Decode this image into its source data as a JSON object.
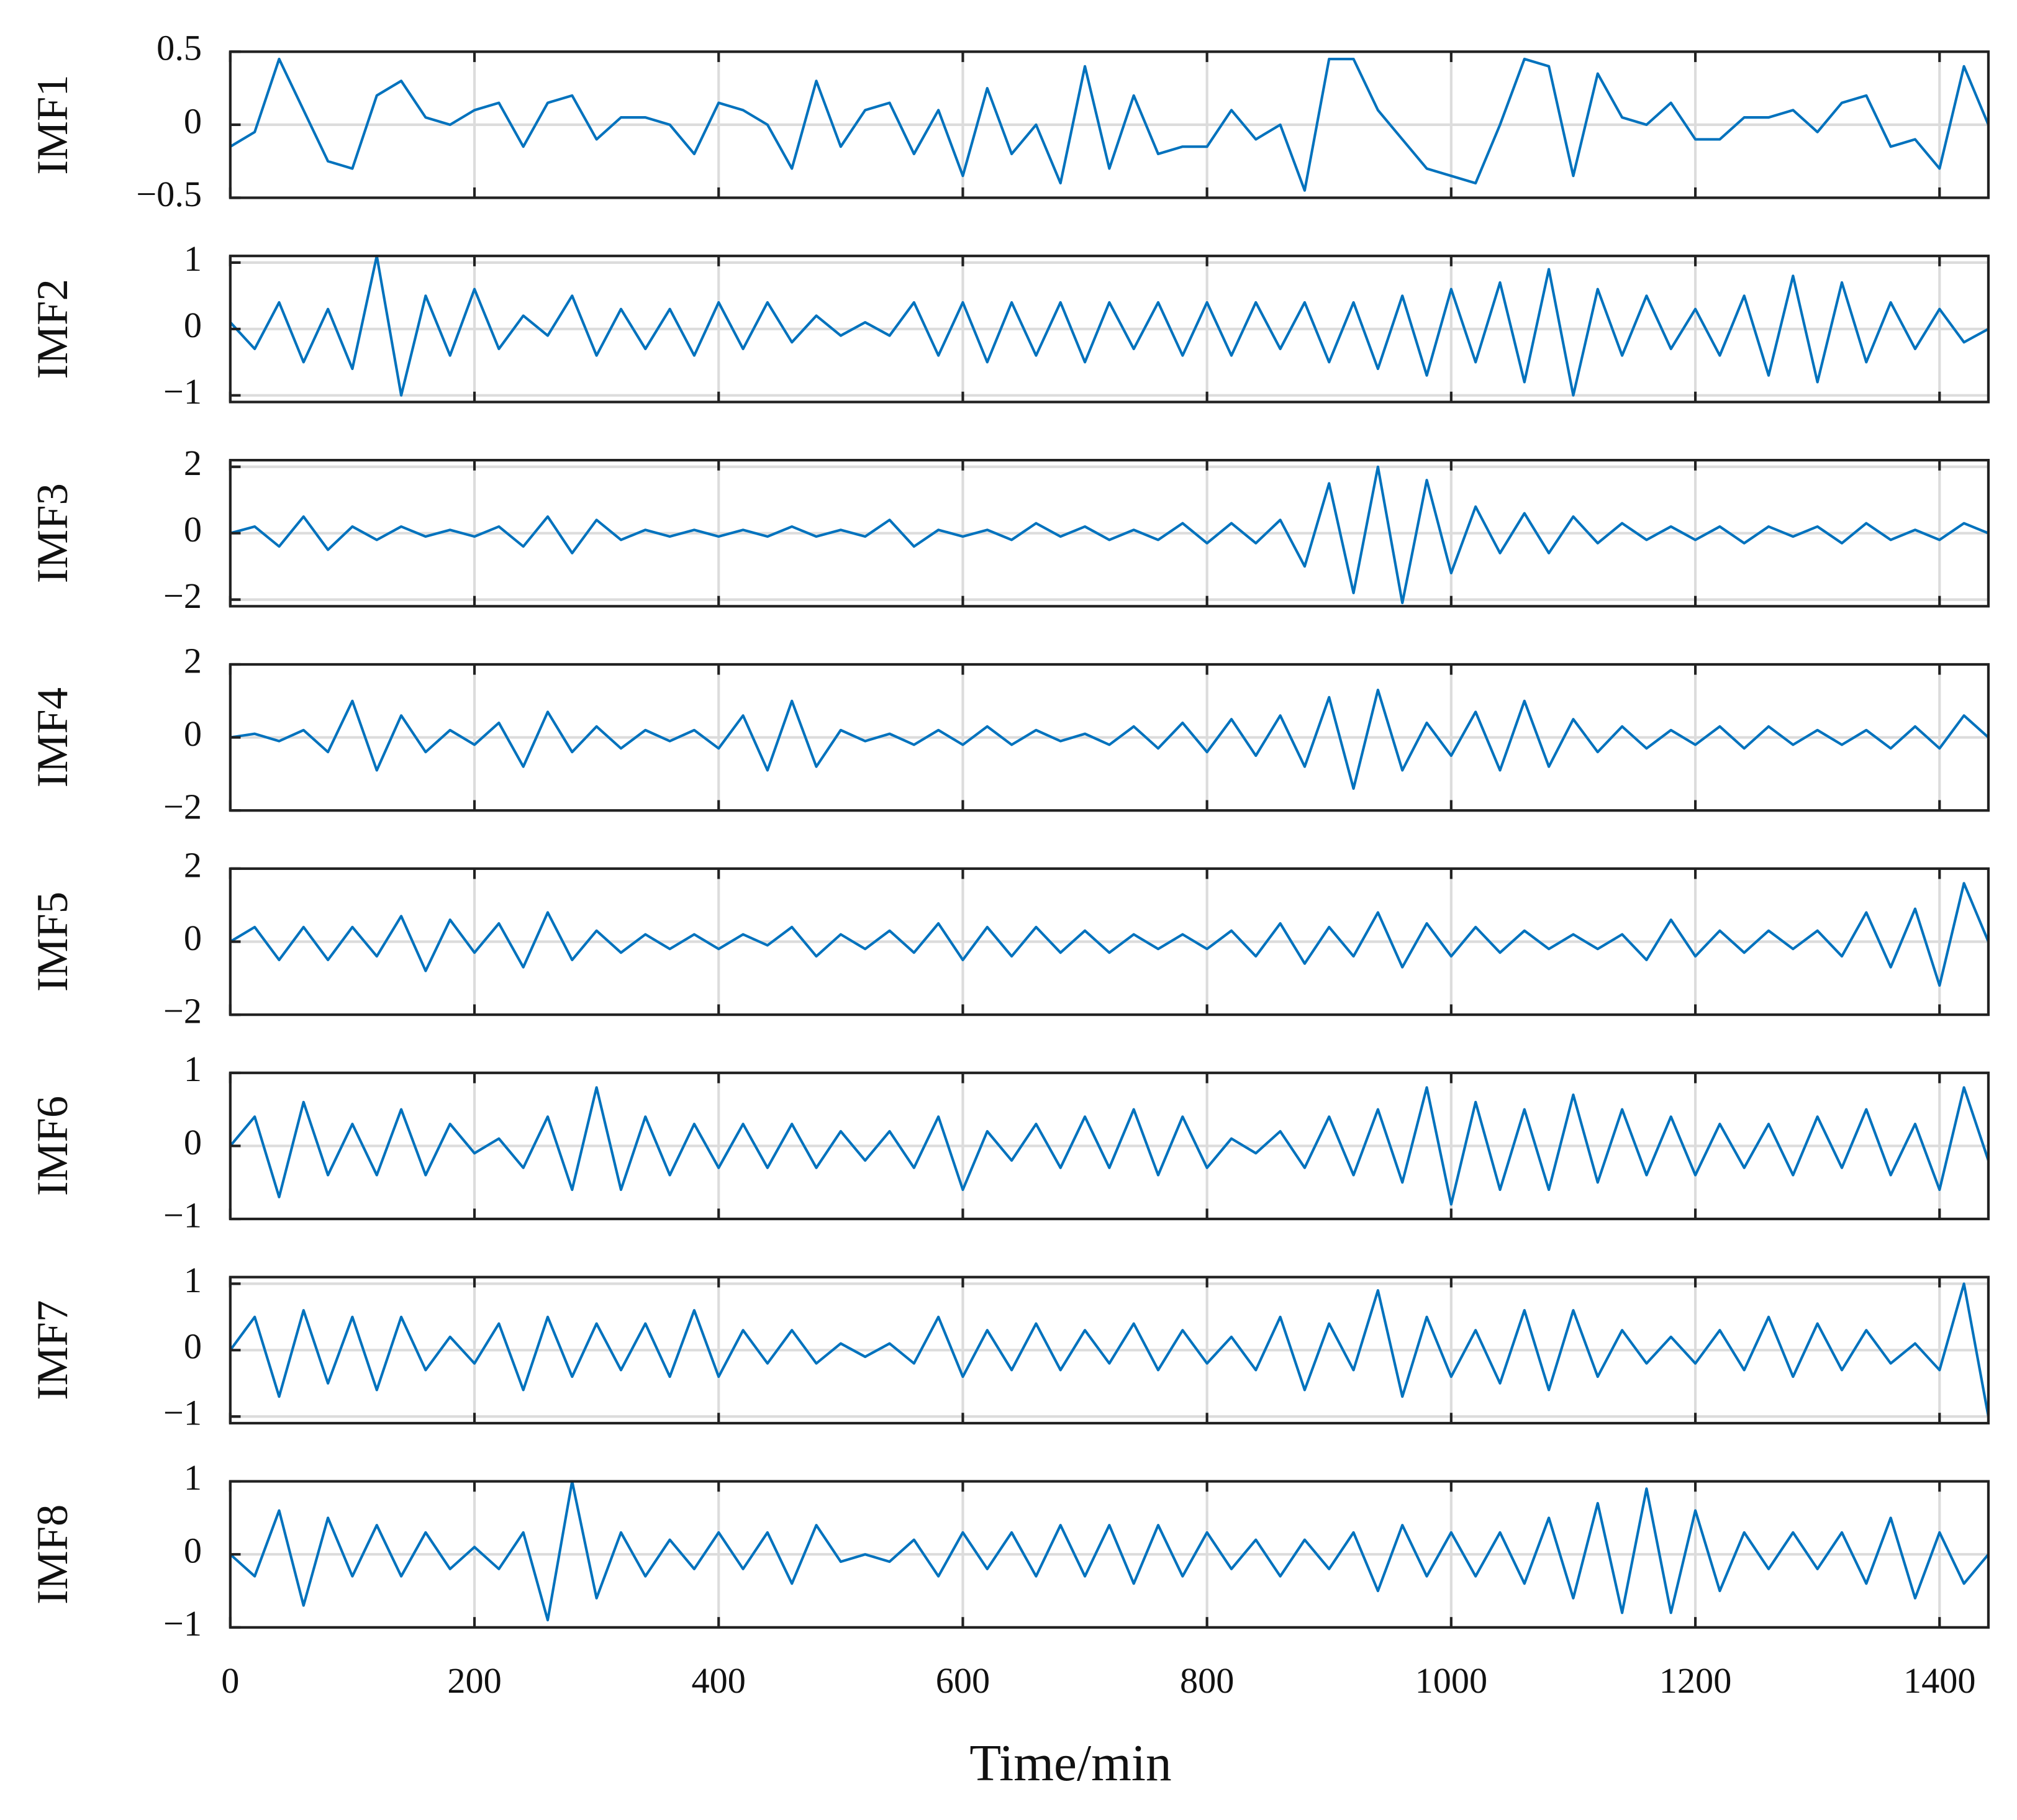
{
  "chart_data": [
    {
      "type": "line",
      "ylabel": "IMF1",
      "color": "#0072bd",
      "grid": true,
      "x": [
        0,
        20,
        40,
        60,
        80,
        100,
        120,
        140,
        160,
        180,
        200,
        220,
        240,
        260,
        280,
        300,
        320,
        340,
        360,
        380,
        400,
        420,
        440,
        460,
        480,
        500,
        520,
        540,
        560,
        580,
        600,
        620,
        640,
        660,
        680,
        700,
        720,
        740,
        760,
        780,
        800,
        820,
        840,
        860,
        880,
        900,
        920,
        940,
        960,
        980,
        1000,
        1020,
        1040,
        1060,
        1080,
        1100,
        1120,
        1140,
        1160,
        1180,
        1200,
        1220,
        1240,
        1260,
        1280,
        1300,
        1320,
        1340,
        1360,
        1380,
        1400,
        1420,
        1440
      ],
      "values": [
        -0.15,
        -0.05,
        0.45,
        0.1,
        -0.25,
        -0.3,
        0.2,
        0.3,
        0.05,
        0.0,
        0.1,
        0.15,
        -0.15,
        0.15,
        0.2,
        -0.1,
        0.05,
        0.05,
        0.0,
        -0.2,
        0.15,
        0.1,
        0.0,
        -0.3,
        0.3,
        -0.15,
        0.1,
        0.15,
        -0.2,
        0.1,
        -0.35,
        0.25,
        -0.2,
        0.0,
        -0.4,
        0.4,
        -0.3,
        0.2,
        -0.2,
        -0.15,
        -0.15,
        0.1,
        -0.1,
        0.0,
        -0.45,
        0.45,
        0.45,
        0.1,
        -0.1,
        -0.3,
        -0.35,
        -0.4,
        0.0,
        0.45,
        0.4,
        -0.35,
        0.35,
        0.05,
        0.0,
        0.15,
        -0.1,
        -0.1,
        0.05,
        0.05,
        0.1,
        -0.05,
        0.15,
        0.2,
        -0.15,
        -0.1,
        -0.3,
        0.4,
        0.0
      ],
      "xlim": [
        0,
        1440
      ],
      "xticks": [
        0,
        200,
        400,
        600,
        800,
        1000,
        1200,
        1400
      ],
      "ylim": [
        -0.5,
        0.5
      ],
      "yticks": [
        {
          "value": -0.5,
          "label": "−0.5"
        },
        0,
        0.5
      ]
    },
    {
      "type": "line",
      "ylabel": "IMF2",
      "color": "#0072bd",
      "grid": true,
      "x": [
        0,
        20,
        40,
        60,
        80,
        100,
        120,
        140,
        160,
        180,
        200,
        220,
        240,
        260,
        280,
        300,
        320,
        340,
        360,
        380,
        400,
        420,
        440,
        460,
        480,
        500,
        520,
        540,
        560,
        580,
        600,
        620,
        640,
        660,
        680,
        700,
        720,
        740,
        760,
        780,
        800,
        820,
        840,
        860,
        880,
        900,
        920,
        940,
        960,
        980,
        1000,
        1020,
        1040,
        1060,
        1080,
        1100,
        1120,
        1140,
        1160,
        1180,
        1200,
        1220,
        1240,
        1260,
        1280,
        1300,
        1320,
        1340,
        1360,
        1380,
        1400,
        1420,
        1440
      ],
      "values": [
        0.1,
        -0.3,
        0.4,
        -0.5,
        0.3,
        -0.6,
        1.1,
        -1.0,
        0.5,
        -0.4,
        0.6,
        -0.3,
        0.2,
        -0.1,
        0.5,
        -0.4,
        0.3,
        -0.3,
        0.3,
        -0.4,
        0.4,
        -0.3,
        0.4,
        -0.2,
        0.2,
        -0.1,
        0.1,
        -0.1,
        0.4,
        -0.4,
        0.4,
        -0.5,
        0.4,
        -0.4,
        0.4,
        -0.5,
        0.4,
        -0.3,
        0.4,
        -0.4,
        0.4,
        -0.4,
        0.4,
        -0.3,
        0.4,
        -0.5,
        0.4,
        -0.6,
        0.5,
        -0.7,
        0.6,
        -0.5,
        0.7,
        -0.8,
        0.9,
        -1.0,
        0.6,
        -0.4,
        0.5,
        -0.3,
        0.3,
        -0.4,
        0.5,
        -0.7,
        0.8,
        -0.8,
        0.7,
        -0.5,
        0.4,
        -0.3,
        0.3,
        -0.2,
        0.0
      ],
      "xlim": [
        0,
        1440
      ],
      "xticks": [
        0,
        200,
        400,
        600,
        800,
        1000,
        1200,
        1400
      ],
      "ylim": [
        -1.1,
        1.1
      ],
      "yticks": [
        {
          "value": -1,
          "label": "−1"
        },
        0,
        1
      ]
    },
    {
      "type": "line",
      "ylabel": "IMF3",
      "color": "#0072bd",
      "grid": true,
      "x": [
        0,
        20,
        40,
        60,
        80,
        100,
        120,
        140,
        160,
        180,
        200,
        220,
        240,
        260,
        280,
        300,
        320,
        340,
        360,
        380,
        400,
        420,
        440,
        460,
        480,
        500,
        520,
        540,
        560,
        580,
        600,
        620,
        640,
        660,
        680,
        700,
        720,
        740,
        760,
        780,
        800,
        820,
        840,
        860,
        880,
        900,
        920,
        940,
        960,
        980,
        1000,
        1020,
        1040,
        1060,
        1080,
        1100,
        1120,
        1140,
        1160,
        1180,
        1200,
        1220,
        1240,
        1260,
        1280,
        1300,
        1320,
        1340,
        1360,
        1380,
        1400,
        1420,
        1440
      ],
      "values": [
        0,
        0.2,
        -0.4,
        0.5,
        -0.5,
        0.2,
        -0.2,
        0.2,
        -0.1,
        0.1,
        -0.1,
        0.2,
        -0.4,
        0.5,
        -0.6,
        0.4,
        -0.2,
        0.1,
        -0.1,
        0.1,
        -0.1,
        0.1,
        -0.1,
        0.2,
        -0.1,
        0.1,
        -0.1,
        0.4,
        -0.4,
        0.1,
        -0.1,
        0.1,
        -0.2,
        0.3,
        -0.1,
        0.2,
        -0.2,
        0.1,
        -0.2,
        0.3,
        -0.3,
        0.3,
        -0.3,
        0.4,
        -1.0,
        1.5,
        -1.8,
        2.0,
        -2.1,
        1.6,
        -1.2,
        0.8,
        -0.6,
        0.6,
        -0.6,
        0.5,
        -0.3,
        0.3,
        -0.2,
        0.2,
        -0.2,
        0.2,
        -0.3,
        0.2,
        -0.1,
        0.2,
        -0.3,
        0.3,
        -0.2,
        0.1,
        -0.2,
        0.3,
        0.0
      ],
      "xlim": [
        0,
        1440
      ],
      "xticks": [
        0,
        200,
        400,
        600,
        800,
        1000,
        1200,
        1400
      ],
      "ylim": [
        -2.2,
        2.2
      ],
      "yticks": [
        {
          "value": -2,
          "label": "−2"
        },
        0,
        2
      ]
    },
    {
      "type": "line",
      "ylabel": "IMF4",
      "color": "#0072bd",
      "grid": true,
      "x": [
        0,
        20,
        40,
        60,
        80,
        100,
        120,
        140,
        160,
        180,
        200,
        220,
        240,
        260,
        280,
        300,
        320,
        340,
        360,
        380,
        400,
        420,
        440,
        460,
        480,
        500,
        520,
        540,
        560,
        580,
        600,
        620,
        640,
        660,
        680,
        700,
        720,
        740,
        760,
        780,
        800,
        820,
        840,
        860,
        880,
        900,
        920,
        940,
        960,
        980,
        1000,
        1020,
        1040,
        1060,
        1080,
        1100,
        1120,
        1140,
        1160,
        1180,
        1200,
        1220,
        1240,
        1260,
        1280,
        1300,
        1320,
        1340,
        1360,
        1380,
        1400,
        1420,
        1440
      ],
      "values": [
        0,
        0.1,
        -0.1,
        0.2,
        -0.4,
        1.0,
        -0.9,
        0.6,
        -0.4,
        0.2,
        -0.2,
        0.4,
        -0.8,
        0.7,
        -0.4,
        0.3,
        -0.3,
        0.2,
        -0.1,
        0.2,
        -0.3,
        0.6,
        -0.9,
        1.0,
        -0.8,
        0.2,
        -0.1,
        0.1,
        -0.2,
        0.2,
        -0.2,
        0.3,
        -0.2,
        0.2,
        -0.1,
        0.1,
        -0.2,
        0.3,
        -0.3,
        0.4,
        -0.4,
        0.5,
        -0.5,
        0.6,
        -0.8,
        1.1,
        -1.4,
        1.3,
        -0.9,
        0.4,
        -0.5,
        0.7,
        -0.9,
        1.0,
        -0.8,
        0.5,
        -0.4,
        0.3,
        -0.3,
        0.2,
        -0.2,
        0.3,
        -0.3,
        0.3,
        -0.2,
        0.2,
        -0.2,
        0.2,
        -0.3,
        0.3,
        -0.3,
        0.6,
        0.0
      ],
      "xlim": [
        0,
        1440
      ],
      "xticks": [
        0,
        200,
        400,
        600,
        800,
        1000,
        1200,
        1400
      ],
      "ylim": [
        -2,
        2
      ],
      "yticks": [
        {
          "value": -2,
          "label": "−2"
        },
        0,
        2
      ]
    },
    {
      "type": "line",
      "ylabel": "IMF5",
      "color": "#0072bd",
      "grid": true,
      "x": [
        0,
        20,
        40,
        60,
        80,
        100,
        120,
        140,
        160,
        180,
        200,
        220,
        240,
        260,
        280,
        300,
        320,
        340,
        360,
        380,
        400,
        420,
        440,
        460,
        480,
        500,
        520,
        540,
        560,
        580,
        600,
        620,
        640,
        660,
        680,
        700,
        720,
        740,
        760,
        780,
        800,
        820,
        840,
        860,
        880,
        900,
        920,
        940,
        960,
        980,
        1000,
        1020,
        1040,
        1060,
        1080,
        1100,
        1120,
        1140,
        1160,
        1180,
        1200,
        1220,
        1240,
        1260,
        1280,
        1300,
        1320,
        1340,
        1360,
        1380,
        1400,
        1420,
        1440
      ],
      "values": [
        0,
        0.4,
        -0.5,
        0.4,
        -0.5,
        0.4,
        -0.4,
        0.7,
        -0.8,
        0.6,
        -0.3,
        0.5,
        -0.7,
        0.8,
        -0.5,
        0.3,
        -0.3,
        0.2,
        -0.2,
        0.2,
        -0.2,
        0.2,
        -0.1,
        0.4,
        -0.4,
        0.2,
        -0.2,
        0.3,
        -0.3,
        0.5,
        -0.5,
        0.4,
        -0.4,
        0.4,
        -0.3,
        0.3,
        -0.3,
        0.2,
        -0.2,
        0.2,
        -0.2,
        0.3,
        -0.4,
        0.5,
        -0.6,
        0.4,
        -0.4,
        0.8,
        -0.7,
        0.5,
        -0.4,
        0.4,
        -0.3,
        0.3,
        -0.2,
        0.2,
        -0.2,
        0.2,
        -0.5,
        0.6,
        -0.4,
        0.3,
        -0.3,
        0.3,
        -0.2,
        0.3,
        -0.4,
        0.8,
        -0.7,
        0.9,
        -1.2,
        1.6,
        0.0
      ],
      "xlim": [
        0,
        1440
      ],
      "xticks": [
        0,
        200,
        400,
        600,
        800,
        1000,
        1200,
        1400
      ],
      "ylim": [
        -2,
        2
      ],
      "yticks": [
        {
          "value": -2,
          "label": "−2"
        },
        0,
        2
      ]
    },
    {
      "type": "line",
      "ylabel": "IMF6",
      "color": "#0072bd",
      "grid": true,
      "x": [
        0,
        20,
        40,
        60,
        80,
        100,
        120,
        140,
        160,
        180,
        200,
        220,
        240,
        260,
        280,
        300,
        320,
        340,
        360,
        380,
        400,
        420,
        440,
        460,
        480,
        500,
        520,
        540,
        560,
        580,
        600,
        620,
        640,
        660,
        680,
        700,
        720,
        740,
        760,
        780,
        800,
        820,
        840,
        860,
        880,
        900,
        920,
        940,
        960,
        980,
        1000,
        1020,
        1040,
        1060,
        1080,
        1100,
        1120,
        1140,
        1160,
        1180,
        1200,
        1220,
        1240,
        1260,
        1280,
        1300,
        1320,
        1340,
        1360,
        1380,
        1400,
        1420,
        1440
      ],
      "values": [
        0,
        0.4,
        -0.7,
        0.6,
        -0.4,
        0.3,
        -0.4,
        0.5,
        -0.4,
        0.3,
        -0.1,
        0.1,
        -0.3,
        0.4,
        -0.6,
        0.8,
        -0.6,
        0.4,
        -0.4,
        0.3,
        -0.3,
        0.3,
        -0.3,
        0.3,
        -0.3,
        0.2,
        -0.2,
        0.2,
        -0.3,
        0.4,
        -0.6,
        0.2,
        -0.2,
        0.3,
        -0.3,
        0.4,
        -0.3,
        0.5,
        -0.4,
        0.4,
        -0.3,
        0.1,
        -0.1,
        0.2,
        -0.3,
        0.4,
        -0.4,
        0.5,
        -0.5,
        0.8,
        -0.8,
        0.6,
        -0.6,
        0.5,
        -0.6,
        0.7,
        -0.5,
        0.5,
        -0.4,
        0.4,
        -0.4,
        0.3,
        -0.3,
        0.3,
        -0.4,
        0.4,
        -0.3,
        0.5,
        -0.4,
        0.3,
        -0.6,
        0.8,
        -0.2
      ],
      "xlim": [
        0,
        1440
      ],
      "xticks": [
        0,
        200,
        400,
        600,
        800,
        1000,
        1200,
        1400
      ],
      "ylim": [
        -1,
        1
      ],
      "yticks": [
        {
          "value": -1,
          "label": "−1"
        },
        0,
        1
      ]
    },
    {
      "type": "line",
      "ylabel": "IMF7",
      "color": "#0072bd",
      "grid": true,
      "x": [
        0,
        20,
        40,
        60,
        80,
        100,
        120,
        140,
        160,
        180,
        200,
        220,
        240,
        260,
        280,
        300,
        320,
        340,
        360,
        380,
        400,
        420,
        440,
        460,
        480,
        500,
        520,
        540,
        560,
        580,
        600,
        620,
        640,
        660,
        680,
        700,
        720,
        740,
        760,
        780,
        800,
        820,
        840,
        860,
        880,
        900,
        920,
        940,
        960,
        980,
        1000,
        1020,
        1040,
        1060,
        1080,
        1100,
        1120,
        1140,
        1160,
        1180,
        1200,
        1220,
        1240,
        1260,
        1280,
        1300,
        1320,
        1340,
        1360,
        1380,
        1400,
        1420,
        1440
      ],
      "values": [
        0,
        0.5,
        -0.7,
        0.6,
        -0.5,
        0.5,
        -0.6,
        0.5,
        -0.3,
        0.2,
        -0.2,
        0.4,
        -0.6,
        0.5,
        -0.4,
        0.4,
        -0.3,
        0.4,
        -0.4,
        0.6,
        -0.4,
        0.3,
        -0.2,
        0.3,
        -0.2,
        0.1,
        -0.1,
        0.1,
        -0.2,
        0.5,
        -0.4,
        0.3,
        -0.3,
        0.4,
        -0.3,
        0.3,
        -0.2,
        0.4,
        -0.3,
        0.3,
        -0.2,
        0.2,
        -0.3,
        0.5,
        -0.6,
        0.4,
        -0.3,
        0.9,
        -0.7,
        0.5,
        -0.4,
        0.3,
        -0.5,
        0.6,
        -0.6,
        0.6,
        -0.4,
        0.3,
        -0.2,
        0.2,
        -0.2,
        0.3,
        -0.3,
        0.5,
        -0.4,
        0.4,
        -0.3,
        0.3,
        -0.2,
        0.1,
        -0.3,
        1.0,
        -1.0
      ],
      "xlim": [
        0,
        1440
      ],
      "xticks": [
        0,
        200,
        400,
        600,
        800,
        1000,
        1200,
        1400
      ],
      "ylim": [
        -1.1,
        1.1
      ],
      "yticks": [
        {
          "value": -1,
          "label": "−1"
        },
        0,
        1
      ]
    },
    {
      "type": "line",
      "ylabel": "IMF8",
      "xlabel": "Time/min",
      "color": "#0072bd",
      "grid": true,
      "x": [
        0,
        20,
        40,
        60,
        80,
        100,
        120,
        140,
        160,
        180,
        200,
        220,
        240,
        260,
        280,
        300,
        320,
        340,
        360,
        380,
        400,
        420,
        440,
        460,
        480,
        500,
        520,
        540,
        560,
        580,
        600,
        620,
        640,
        660,
        680,
        700,
        720,
        740,
        760,
        780,
        800,
        820,
        840,
        860,
        880,
        900,
        920,
        940,
        960,
        980,
        1000,
        1020,
        1040,
        1060,
        1080,
        1100,
        1120,
        1140,
        1160,
        1180,
        1200,
        1220,
        1240,
        1260,
        1280,
        1300,
        1320,
        1340,
        1360,
        1380,
        1400,
        1420,
        1440
      ],
      "values": [
        0,
        -0.3,
        0.6,
        -0.7,
        0.5,
        -0.3,
        0.4,
        -0.3,
        0.3,
        -0.2,
        0.1,
        -0.2,
        0.3,
        -0.9,
        1.0,
        -0.6,
        0.3,
        -0.3,
        0.2,
        -0.2,
        0.3,
        -0.2,
        0.3,
        -0.4,
        0.4,
        -0.1,
        0.0,
        -0.1,
        0.2,
        -0.3,
        0.3,
        -0.2,
        0.3,
        -0.3,
        0.4,
        -0.3,
        0.4,
        -0.4,
        0.4,
        -0.3,
        0.3,
        -0.2,
        0.2,
        -0.3,
        0.2,
        -0.2,
        0.3,
        -0.5,
        0.4,
        -0.3,
        0.3,
        -0.3,
        0.3,
        -0.4,
        0.5,
        -0.6,
        0.7,
        -0.8,
        0.9,
        -0.8,
        0.6,
        -0.5,
        0.3,
        -0.2,
        0.3,
        -0.2,
        0.3,
        -0.4,
        0.5,
        -0.6,
        0.3,
        -0.4,
        0.0
      ],
      "xlim": [
        0,
        1440
      ],
      "xticks": [
        0,
        200,
        400,
        600,
        800,
        1000,
        1200,
        1400
      ],
      "xticklabels": true,
      "ylim": [
        -1,
        1
      ],
      "yticks": [
        {
          "value": -1,
          "label": "−1"
        },
        0,
        1
      ]
    }
  ]
}
